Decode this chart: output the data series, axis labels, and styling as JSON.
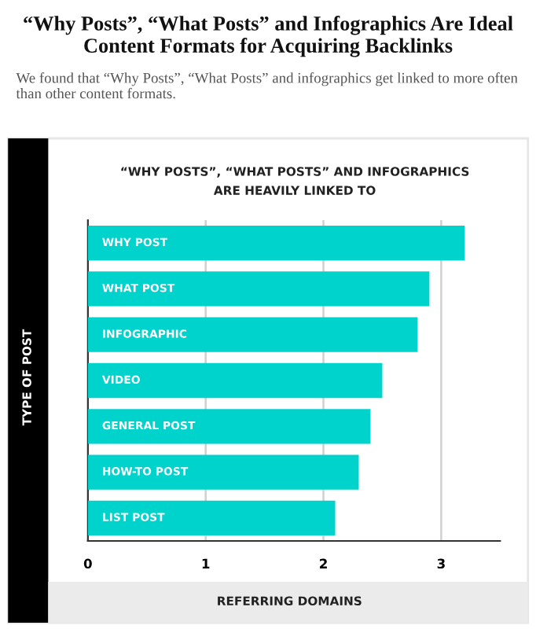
{
  "chart_data": {
    "type": "bar",
    "orientation": "horizontal",
    "title": "“Why Posts”, “What Posts” and Infographics Are Ideal Content Formats for Acquiring Backlinks",
    "subtitle": "“WHY POSTS”, “WHAT POSTS” AND INFOGRAPHICS\nARE HEAVILY LINKED TO",
    "annotations": [
      "We found that “Why Posts”, “What Posts” and infographics get linked to more often than other content formats."
    ],
    "xlabel": "REFERRING DOMAINS",
    "ylabel": "TYPE OF POST",
    "categories": [
      "WHY POST",
      "WHAT POST",
      "INFOGRAPHIC",
      "VIDEO",
      "GENERAL POST",
      "HOW-TO POST",
      "LIST POST"
    ],
    "values": [
      3.2,
      2.9,
      2.8,
      2.5,
      2.4,
      2.3,
      2.1
    ],
    "color": "#00d2cc",
    "xlim": [
      0,
      3.5
    ],
    "xticks": [
      0,
      1,
      2,
      3
    ],
    "grid": true
  }
}
